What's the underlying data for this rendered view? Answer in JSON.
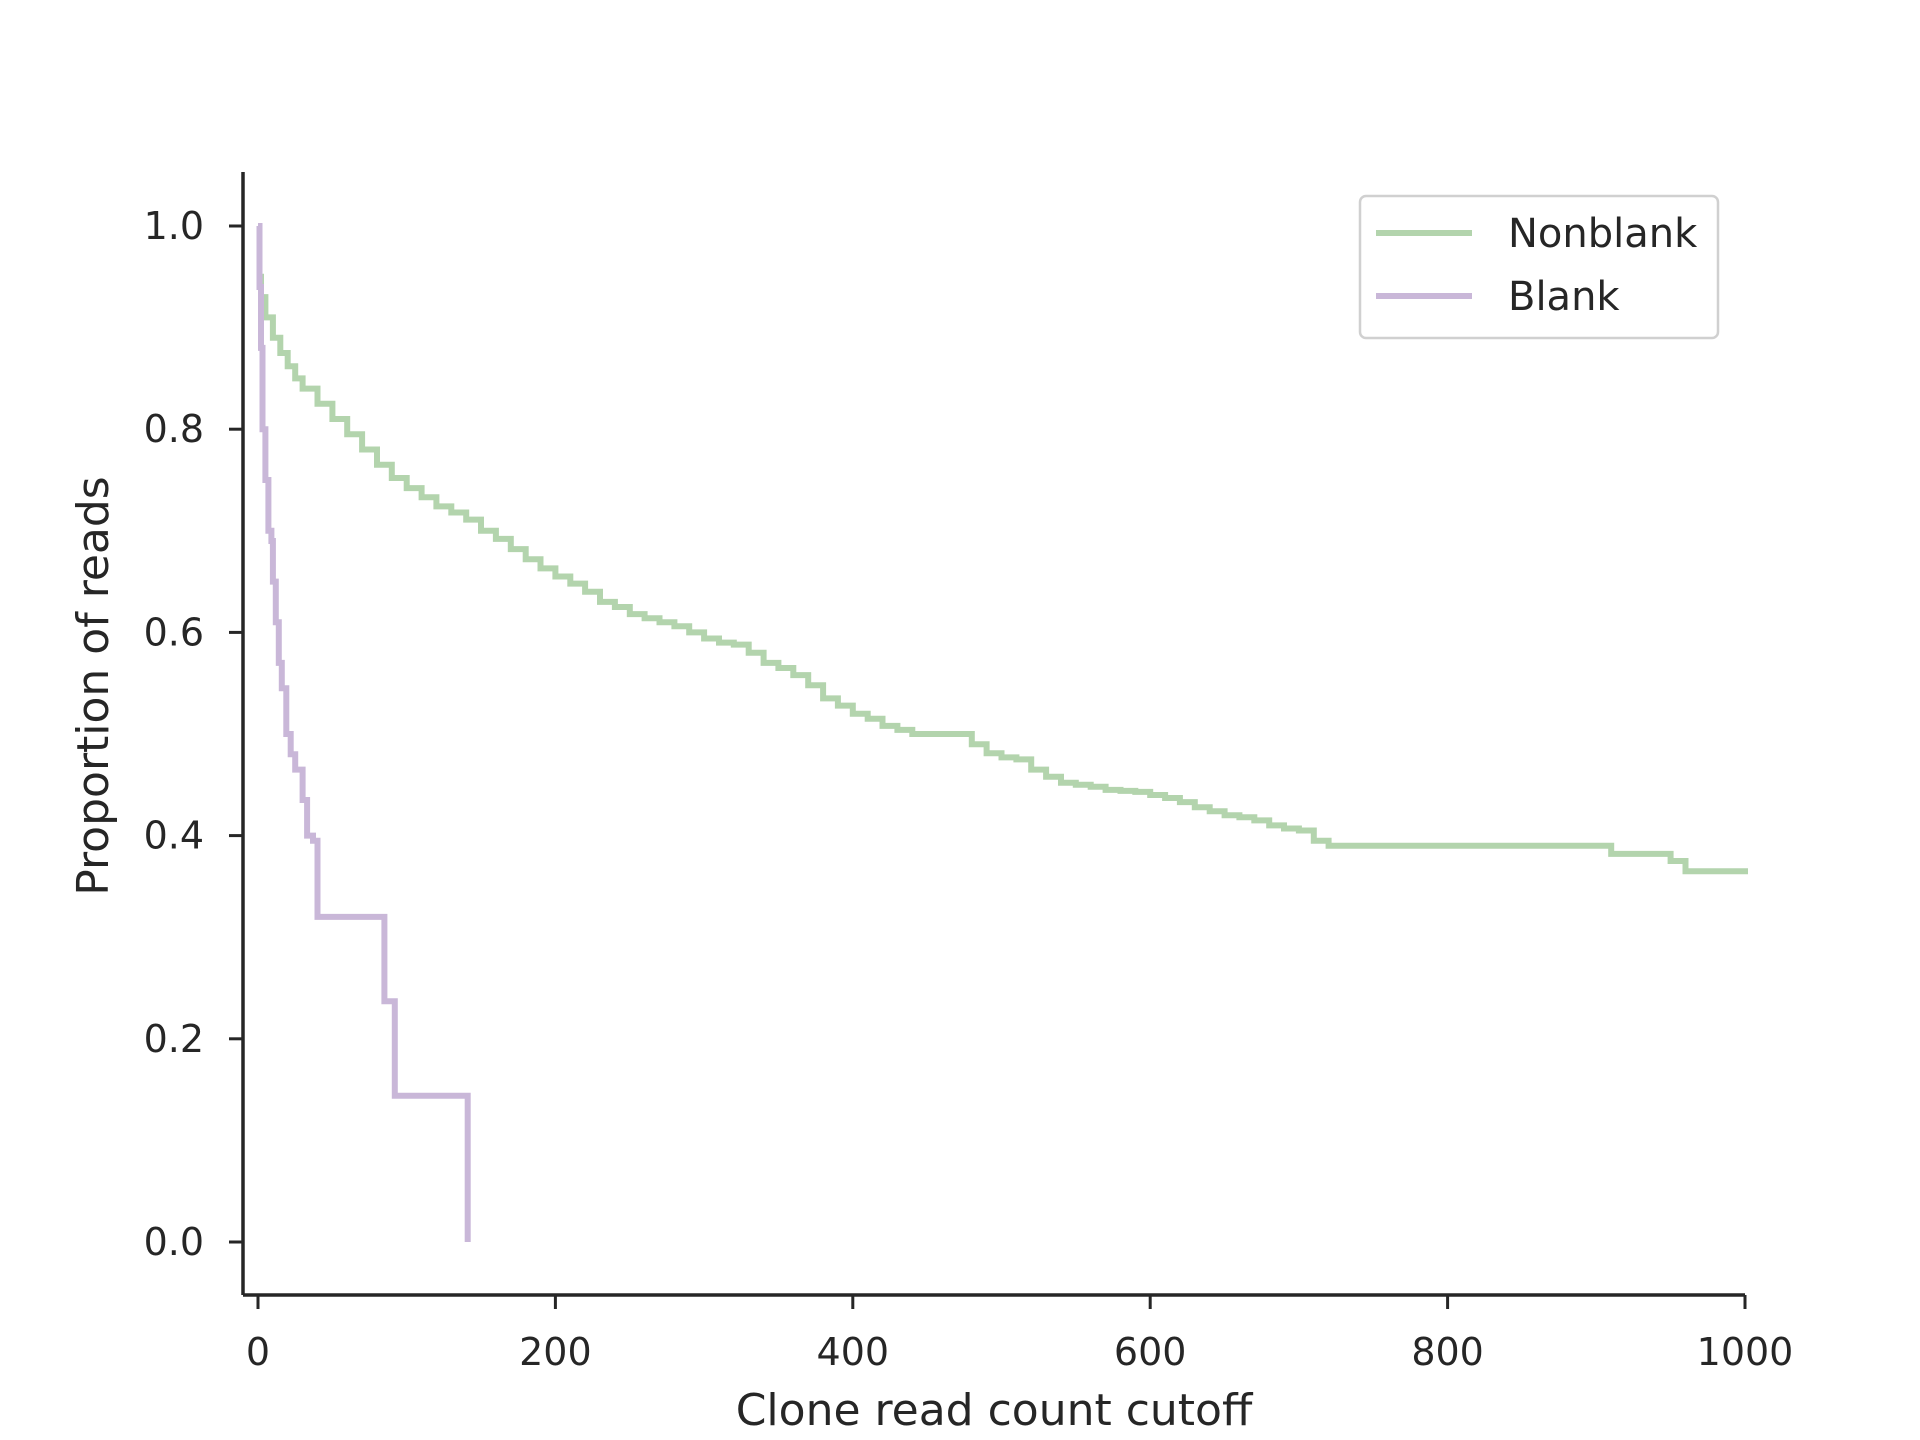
{
  "chart_data": {
    "type": "line",
    "title": "",
    "xlabel": "Clone read count cutoff",
    "ylabel": "Proportion of reads",
    "xlim": [
      -15,
      1000
    ],
    "ylim": [
      -0.05,
      1.05
    ],
    "xticks": [
      0,
      200,
      400,
      600,
      800,
      1000
    ],
    "xtick_labels": [
      "0",
      "200",
      "400",
      "600",
      "800",
      "1000"
    ],
    "yticks": [
      0.0,
      0.2,
      0.4,
      0.6,
      0.8,
      1.0
    ],
    "ytick_labels": [
      "0.0",
      "0.2",
      "0.4",
      "0.6",
      "0.8",
      "1.0"
    ],
    "grid": false,
    "legend_position": "top-right",
    "series": [
      {
        "name": "Nonblank",
        "color": "#b3d4ad",
        "step": true,
        "x": [
          0,
          2,
          5,
          10,
          15,
          20,
          25,
          30,
          40,
          50,
          60,
          70,
          80,
          90,
          100,
          110,
          120,
          130,
          140,
          150,
          160,
          170,
          180,
          190,
          200,
          210,
          220,
          230,
          240,
          250,
          260,
          270,
          280,
          290,
          300,
          310,
          320,
          330,
          340,
          350,
          360,
          370,
          380,
          390,
          400,
          410,
          420,
          430,
          440,
          450,
          460,
          470,
          480,
          490,
          500,
          510,
          520,
          530,
          540,
          550,
          560,
          570,
          580,
          590,
          600,
          610,
          620,
          630,
          640,
          650,
          660,
          670,
          680,
          690,
          700,
          710,
          720,
          800,
          900,
          910,
          950,
          960,
          1000
        ],
        "y": [
          0.95,
          0.93,
          0.91,
          0.89,
          0.875,
          0.862,
          0.85,
          0.84,
          0.825,
          0.81,
          0.795,
          0.78,
          0.765,
          0.752,
          0.742,
          0.733,
          0.724,
          0.718,
          0.711,
          0.7,
          0.692,
          0.682,
          0.672,
          0.663,
          0.655,
          0.648,
          0.64,
          0.63,
          0.625,
          0.618,
          0.614,
          0.61,
          0.606,
          0.6,
          0.594,
          0.59,
          0.588,
          0.58,
          0.57,
          0.565,
          0.558,
          0.548,
          0.535,
          0.528,
          0.52,
          0.515,
          0.508,
          0.504,
          0.5,
          0.5,
          0.5,
          0.5,
          0.49,
          0.481,
          0.477,
          0.475,
          0.465,
          0.458,
          0.452,
          0.45,
          0.448,
          0.445,
          0.444,
          0.443,
          0.44,
          0.437,
          0.433,
          0.428,
          0.424,
          0.42,
          0.418,
          0.415,
          0.41,
          0.407,
          0.405,
          0.395,
          0.39,
          0.39,
          0.39,
          0.382,
          0.375,
          0.365,
          0.362
        ]
      },
      {
        "name": "Blank",
        "color": "#c9b7d8",
        "step": true,
        "x": [
          0,
          1,
          2,
          3,
          5,
          7,
          9,
          10,
          12,
          14,
          16,
          19,
          22,
          25,
          30,
          33,
          37,
          40,
          60,
          85,
          92,
          100,
          140,
          141
        ],
        "y": [
          1.0,
          0.94,
          0.88,
          0.8,
          0.75,
          0.7,
          0.69,
          0.65,
          0.61,
          0.57,
          0.545,
          0.5,
          0.48,
          0.465,
          0.435,
          0.4,
          0.395,
          0.32,
          0.32,
          0.237,
          0.144,
          0.144,
          0.144,
          0.0
        ]
      }
    ]
  }
}
